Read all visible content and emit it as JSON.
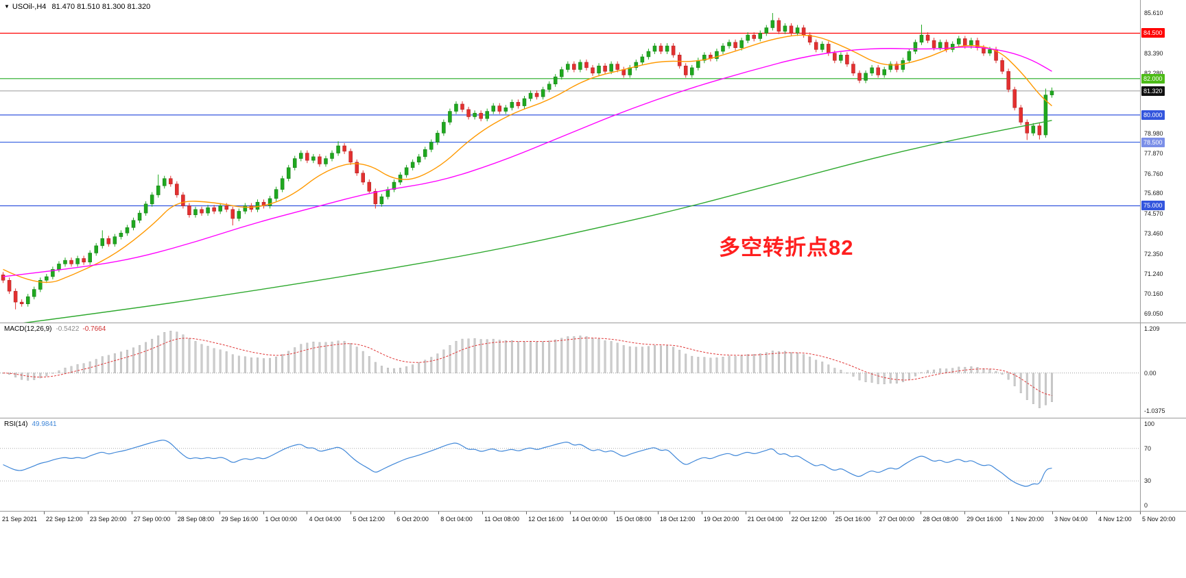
{
  "header": {
    "collapse_icon": "▼",
    "symbol_tf": "USOil-,H4",
    "ohlc": "81.470 81.510 81.300 81.320"
  },
  "chart_data": {
    "type": "candlestick",
    "symbol": "USOil-",
    "timeframe": "H4",
    "price_axis": {
      "min": 68.95,
      "max": 85.95,
      "ticks": [
        [
          85.61,
          "85.610"
        ],
        [
          83.39,
          "83.390"
        ],
        [
          82.28,
          "82.280"
        ],
        [
          78.98,
          "78.980"
        ],
        [
          77.87,
          "77.870"
        ],
        [
          76.76,
          "76.760"
        ],
        [
          75.68,
          "75.680"
        ],
        [
          74.57,
          "74.570"
        ],
        [
          73.46,
          "73.460"
        ],
        [
          72.35,
          "72.350"
        ],
        [
          71.24,
          "71.240"
        ],
        [
          70.16,
          "70.160"
        ],
        [
          69.05,
          "69.050"
        ]
      ]
    },
    "first_open": 71.2,
    "default_wick": 0.15,
    "closes": [
      70.9,
      70.3,
      69.7,
      69.6,
      70.0,
      70.4,
      70.9,
      71.1,
      71.5,
      71.8,
      72.0,
      71.8,
      72.1,
      71.9,
      72.4,
      72.8,
      73.2,
      72.9,
      73.3,
      73.5,
      73.8,
      74.2,
      74.6,
      75.1,
      75.6,
      76.1,
      76.5,
      76.2,
      75.6,
      75.0,
      74.5,
      74.8,
      74.6,
      74.9,
      74.7,
      75.0,
      74.8,
      74.3,
      74.7,
      75.0,
      74.8,
      75.2,
      75.0,
      75.4,
      75.9,
      76.5,
      77.1,
      77.6,
      77.9,
      77.5,
      77.7,
      77.3,
      77.6,
      77.9,
      78.3,
      78.0,
      77.4,
      76.8,
      76.3,
      75.8,
      75.1,
      75.5,
      75.9,
      76.3,
      76.7,
      77.1,
      77.4,
      77.7,
      78.1,
      78.5,
      79.0,
      79.6,
      80.2,
      80.6,
      80.3,
      79.9,
      80.1,
      79.8,
      80.2,
      80.5,
      80.2,
      80.4,
      80.7,
      80.5,
      80.9,
      81.2,
      81.0,
      81.4,
      81.7,
      82.1,
      82.5,
      82.8,
      82.5,
      82.9,
      82.6,
      82.3,
      82.7,
      82.4,
      82.8,
      82.5,
      82.2,
      82.6,
      82.9,
      83.2,
      83.5,
      83.8,
      83.5,
      83.8,
      83.3,
      82.7,
      82.2,
      82.6,
      83.0,
      83.3,
      83.1,
      83.5,
      83.8,
      84.0,
      83.7,
      84.1,
      84.4,
      84.2,
      84.5,
      84.8,
      85.2,
      84.6,
      84.9,
      84.5,
      84.8,
      84.4,
      84.0,
      83.6,
      83.9,
      83.4,
      83.0,
      83.3,
      82.8,
      82.3,
      81.9,
      82.3,
      82.6,
      82.2,
      82.5,
      82.8,
      82.5,
      83.0,
      83.5,
      84.0,
      84.4,
      84.1,
      83.7,
      84.0,
      83.6,
      83.9,
      84.2,
      83.8,
      84.1,
      83.7,
      83.4,
      83.6,
      83.0,
      82.4,
      81.4,
      80.4,
      79.6,
      79.0,
      79.4,
      78.9,
      81.1,
      81.32
    ],
    "spikes": {
      "2": {
        "low": 69.3
      },
      "16": {
        "high": 73.65
      },
      "25": {
        "high": 76.72
      },
      "37": {
        "low": 73.92
      },
      "54": {
        "high": 78.55
      },
      "60": {
        "low": 74.85
      },
      "124": {
        "high": 85.61
      },
      "148": {
        "high": 84.97
      },
      "165": {
        "low": 78.62
      },
      "167": {
        "low": 78.65
      },
      "168": {
        "high": 81.45
      },
      "169": {
        "high": 81.51,
        "low": 81.05
      }
    },
    "candle_colors": {
      "up": "#1FA81F",
      "up_stroke": "#157815",
      "down": "#E33030",
      "down_stroke": "#A81E1E"
    },
    "hlines": [
      {
        "value": 84.5,
        "label": "84.500",
        "color": "#FF0000",
        "tag_bg": "#FF0000",
        "tag_fg": "#FFFFFF"
      },
      {
        "value": 82.0,
        "label": "82.000",
        "color": "#22AA22",
        "tag_bg": "#4CBB17",
        "tag_fg": "#FFFFFF"
      },
      {
        "value": 81.32,
        "label": "81.320",
        "color": "#8A8A8A",
        "tag_bg": "#111111",
        "tag_fg": "#FFFFFF",
        "role": "current-price"
      },
      {
        "value": 80.0,
        "label": "80.000",
        "color": "#3355DD",
        "tag_bg": "#3355DD",
        "tag_fg": "#FFFFFF"
      },
      {
        "value": 78.5,
        "label": "78.500",
        "color": "#4169E1",
        "tag_bg": "#7B8FE8",
        "tag_fg": "#FFFFFF"
      },
      {
        "value": 75.0,
        "label": "75.000",
        "color": "#3355DD",
        "tag_bg": "#3355DD",
        "tag_fg": "#FFFFFF"
      }
    ],
    "ma_lines": [
      {
        "name": "ma-fast-orange",
        "color": "#FF9900",
        "points": [
          [
            0,
            71.5
          ],
          [
            6,
            70.5
          ],
          [
            12,
            71.3
          ],
          [
            18,
            72.3
          ],
          [
            24,
            73.9
          ],
          [
            28,
            75.3
          ],
          [
            34,
            75.2
          ],
          [
            40,
            74.8
          ],
          [
            46,
            75.4
          ],
          [
            52,
            77.0
          ],
          [
            58,
            77.5
          ],
          [
            64,
            76.2
          ],
          [
            70,
            77.0
          ],
          [
            76,
            78.9
          ],
          [
            82,
            80.1
          ],
          [
            88,
            80.8
          ],
          [
            94,
            82.0
          ],
          [
            100,
            82.5
          ],
          [
            106,
            83.0
          ],
          [
            112,
            82.9
          ],
          [
            118,
            83.5
          ],
          [
            124,
            84.2
          ],
          [
            130,
            84.5
          ],
          [
            136,
            83.7
          ],
          [
            142,
            82.6
          ],
          [
            148,
            83.0
          ],
          [
            154,
            83.9
          ],
          [
            160,
            83.7
          ],
          [
            164,
            82.4
          ],
          [
            167,
            81.1
          ],
          [
            169,
            80.5
          ]
        ]
      },
      {
        "name": "ma-mid-magenta",
        "color": "#FF00FF",
        "points": [
          [
            0,
            71.1
          ],
          [
            10,
            71.5
          ],
          [
            20,
            72.0
          ],
          [
            30,
            72.9
          ],
          [
            40,
            74.0
          ],
          [
            50,
            74.9
          ],
          [
            60,
            75.8
          ],
          [
            70,
            76.3
          ],
          [
            80,
            77.4
          ],
          [
            90,
            78.8
          ],
          [
            100,
            80.2
          ],
          [
            110,
            81.4
          ],
          [
            120,
            82.4
          ],
          [
            130,
            83.3
          ],
          [
            140,
            83.7
          ],
          [
            150,
            83.6
          ],
          [
            156,
            83.8
          ],
          [
            162,
            83.5
          ],
          [
            166,
            83.0
          ],
          [
            169,
            82.4
          ]
        ]
      },
      {
        "name": "ma-slow-green",
        "color": "#2DA82D",
        "points": [
          [
            0,
            68.4
          ],
          [
            20,
            69.3
          ],
          [
            40,
            70.3
          ],
          [
            60,
            71.4
          ],
          [
            80,
            72.6
          ],
          [
            100,
            74.1
          ],
          [
            110,
            74.9
          ],
          [
            120,
            75.8
          ],
          [
            130,
            76.7
          ],
          [
            140,
            77.6
          ],
          [
            150,
            78.4
          ],
          [
            160,
            79.1
          ],
          [
            169,
            79.7
          ]
        ]
      }
    ],
    "annotation": {
      "text": "多空转折点82",
      "color": "#FF1F1F"
    },
    "indicators": {
      "macd": {
        "label": "MACD(12,26,9)",
        "value_main": "-0.5422",
        "value_signal": "-0.7664",
        "axis": [
          [
            1.209,
            "1.209"
          ],
          [
            0,
            "0.00"
          ],
          [
            -1.0375,
            "-1.0375"
          ]
        ],
        "hist_color": "#CDCDCD",
        "hist_stroke": "#ABABAB",
        "signal_color": "#E03636",
        "params": {
          "fast": 12,
          "slow": 26,
          "signal": 9
        }
      },
      "rsi": {
        "label": "RSI(14)",
        "value": "49.9841",
        "axis": [
          [
            100,
            "100"
          ],
          [
            70,
            "70"
          ],
          [
            30,
            "30"
          ],
          [
            0,
            "0"
          ]
        ],
        "line_color": "#3E86D8",
        "levels": [
          70,
          30
        ],
        "period": 14
      }
    },
    "time_labels": [
      "21 Sep 2021",
      "22 Sep 12:00",
      "23 Sep 20:00",
      "27 Sep 00:00",
      "28 Sep 08:00",
      "29 Sep 16:00",
      "1 Oct 00:00",
      "4 Oct 04:00",
      "5 Oct 12:00",
      "6 Oct 20:00",
      "8 Oct 04:00",
      "11 Oct 08:00",
      "12 Oct 16:00",
      "14 Oct 00:00",
      "15 Oct 08:00",
      "18 Oct 12:00",
      "19 Oct 20:00",
      "21 Oct 04:00",
      "22 Oct 12:00",
      "25 Oct 16:00",
      "27 Oct 00:00",
      "28 Oct 08:00",
      "29 Oct 16:00",
      "1 Nov 20:00",
      "3 Nov 04:00",
      "4 Nov 12:00",
      "5 Nov 20:00"
    ]
  }
}
